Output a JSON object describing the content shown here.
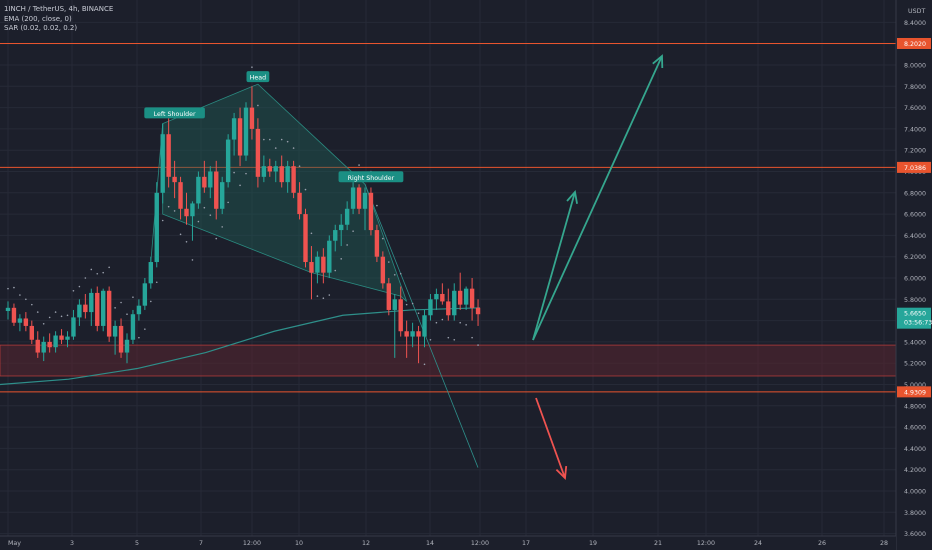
{
  "header": {
    "symbol_line": "1INCH / TetherUS, 4h, BINANCE",
    "indicator_ema": "EMA (200, close, 0)",
    "indicator_sar": "SAR (0.02, 0.02, 0.2)"
  },
  "price_axis": {
    "currency": "USDT",
    "ticks": [
      "8.4000",
      "8.2000",
      "8.0000",
      "7.8000",
      "7.6000",
      "7.4000",
      "7.2000",
      "7.0000",
      "6.8000",
      "6.6000",
      "6.4000",
      "6.2000",
      "6.0000",
      "5.8000",
      "5.6000",
      "5.4000",
      "5.2000",
      "5.0000",
      "4.8000",
      "4.6000",
      "4.4000",
      "4.2000",
      "4.0000",
      "3.8000",
      "3.6000"
    ]
  },
  "time_axis": {
    "ticks": [
      "May",
      "3",
      "5",
      "7",
      "12:00",
      "10",
      "12",
      "14",
      "12:00",
      "17",
      "19",
      "21",
      "12:00",
      "24",
      "26",
      "28"
    ]
  },
  "colors": {
    "background": "#1c1f2b",
    "up": "#26a69a",
    "down": "#ef5350",
    "level_line": "#e8542e",
    "zone_fill": "#5a2430",
    "zone_border": "#b23a3a",
    "ema": "#2e8f8a",
    "sar_dots": "#9aa0ad",
    "pattern_fill": "#1f5b55",
    "arrow_up": "#35a68e",
    "arrow_down": "#ef5350"
  },
  "chart_data": {
    "type": "candlestick",
    "title": "1INCH / TetherUS, 4h, BINANCE",
    "y_scale": "linear",
    "ylim": [
      3.6,
      8.45
    ],
    "grid": true,
    "legend": "top-left",
    "candles": [
      {
        "o": 5.69,
        "h": 5.78,
        "l": 5.61,
        "c": 5.72
      },
      {
        "o": 5.72,
        "h": 5.76,
        "l": 5.55,
        "c": 5.58
      },
      {
        "o": 5.58,
        "h": 5.66,
        "l": 5.5,
        "c": 5.62
      },
      {
        "o": 5.62,
        "h": 5.68,
        "l": 5.5,
        "c": 5.55
      },
      {
        "o": 5.55,
        "h": 5.6,
        "l": 5.38,
        "c": 5.42
      },
      {
        "o": 5.42,
        "h": 5.5,
        "l": 5.25,
        "c": 5.3
      },
      {
        "o": 5.3,
        "h": 5.45,
        "l": 5.22,
        "c": 5.4
      },
      {
        "o": 5.4,
        "h": 5.48,
        "l": 5.3,
        "c": 5.35
      },
      {
        "o": 5.35,
        "h": 5.5,
        "l": 5.3,
        "c": 5.46
      },
      {
        "o": 5.46,
        "h": 5.52,
        "l": 5.38,
        "c": 5.42
      },
      {
        "o": 5.42,
        "h": 5.5,
        "l": 5.35,
        "c": 5.45
      },
      {
        "o": 5.45,
        "h": 5.7,
        "l": 5.42,
        "c": 5.63
      },
      {
        "o": 5.63,
        "h": 5.8,
        "l": 5.55,
        "c": 5.75
      },
      {
        "o": 5.75,
        "h": 5.85,
        "l": 5.62,
        "c": 5.68
      },
      {
        "o": 5.68,
        "h": 5.9,
        "l": 5.55,
        "c": 5.86
      },
      {
        "o": 5.86,
        "h": 5.92,
        "l": 5.5,
        "c": 5.55
      },
      {
        "o": 5.55,
        "h": 5.9,
        "l": 5.5,
        "c": 5.88
      },
      {
        "o": 5.88,
        "h": 5.92,
        "l": 5.4,
        "c": 5.45
      },
      {
        "o": 5.45,
        "h": 5.6,
        "l": 5.28,
        "c": 5.55
      },
      {
        "o": 5.55,
        "h": 5.62,
        "l": 5.25,
        "c": 5.3
      },
      {
        "o": 5.3,
        "h": 5.48,
        "l": 5.2,
        "c": 5.42
      },
      {
        "o": 5.42,
        "h": 5.7,
        "l": 5.38,
        "c": 5.66
      },
      {
        "o": 5.66,
        "h": 5.8,
        "l": 5.6,
        "c": 5.74
      },
      {
        "o": 5.74,
        "h": 6.0,
        "l": 5.7,
        "c": 5.95
      },
      {
        "o": 5.95,
        "h": 6.2,
        "l": 5.9,
        "c": 6.15
      },
      {
        "o": 6.15,
        "h": 6.9,
        "l": 6.1,
        "c": 6.8
      },
      {
        "o": 6.8,
        "h": 7.45,
        "l": 6.7,
        "c": 7.35
      },
      {
        "o": 7.35,
        "h": 7.5,
        "l": 6.85,
        "c": 6.95
      },
      {
        "o": 6.95,
        "h": 7.1,
        "l": 6.75,
        "c": 6.9
      },
      {
        "o": 6.9,
        "h": 6.95,
        "l": 6.55,
        "c": 6.65
      },
      {
        "o": 6.65,
        "h": 6.8,
        "l": 6.5,
        "c": 6.58
      },
      {
        "o": 6.58,
        "h": 6.72,
        "l": 6.35,
        "c": 6.7
      },
      {
        "o": 6.7,
        "h": 7.0,
        "l": 6.65,
        "c": 6.95
      },
      {
        "o": 6.95,
        "h": 7.1,
        "l": 6.8,
        "c": 6.85
      },
      {
        "o": 6.85,
        "h": 7.05,
        "l": 6.75,
        "c": 7.0
      },
      {
        "o": 7.0,
        "h": 7.1,
        "l": 6.55,
        "c": 6.65
      },
      {
        "o": 6.65,
        "h": 6.95,
        "l": 6.6,
        "c": 6.9
      },
      {
        "o": 6.9,
        "h": 7.35,
        "l": 6.85,
        "c": 7.3
      },
      {
        "o": 7.3,
        "h": 7.55,
        "l": 7.15,
        "c": 7.5
      },
      {
        "o": 7.5,
        "h": 7.6,
        "l": 7.05,
        "c": 7.15
      },
      {
        "o": 7.15,
        "h": 7.65,
        "l": 7.1,
        "c": 7.6
      },
      {
        "o": 7.6,
        "h": 7.8,
        "l": 7.3,
        "c": 7.4
      },
      {
        "o": 7.4,
        "h": 7.5,
        "l": 6.85,
        "c": 6.95
      },
      {
        "o": 6.95,
        "h": 7.15,
        "l": 6.9,
        "c": 7.05
      },
      {
        "o": 7.05,
        "h": 7.12,
        "l": 6.95,
        "c": 7.0
      },
      {
        "o": 7.0,
        "h": 7.1,
        "l": 6.9,
        "c": 7.05
      },
      {
        "o": 7.05,
        "h": 7.15,
        "l": 6.85,
        "c": 6.9
      },
      {
        "o": 6.9,
        "h": 7.1,
        "l": 6.8,
        "c": 7.05
      },
      {
        "o": 7.05,
        "h": 7.1,
        "l": 6.75,
        "c": 6.8
      },
      {
        "o": 6.8,
        "h": 6.9,
        "l": 6.55,
        "c": 6.6
      },
      {
        "o": 6.6,
        "h": 6.65,
        "l": 6.1,
        "c": 6.15
      },
      {
        "o": 6.15,
        "h": 6.3,
        "l": 5.8,
        "c": 6.05
      },
      {
        "o": 6.05,
        "h": 6.25,
        "l": 5.95,
        "c": 6.2
      },
      {
        "o": 6.2,
        "h": 6.28,
        "l": 5.95,
        "c": 6.05
      },
      {
        "o": 6.05,
        "h": 6.4,
        "l": 6.0,
        "c": 6.35
      },
      {
        "o": 6.35,
        "h": 6.5,
        "l": 6.25,
        "c": 6.45
      },
      {
        "o": 6.45,
        "h": 6.6,
        "l": 6.3,
        "c": 6.5
      },
      {
        "o": 6.5,
        "h": 6.72,
        "l": 6.45,
        "c": 6.65
      },
      {
        "o": 6.65,
        "h": 6.9,
        "l": 6.6,
        "c": 6.85
      },
      {
        "o": 6.85,
        "h": 6.88,
        "l": 6.6,
        "c": 6.65
      },
      {
        "o": 6.65,
        "h": 6.85,
        "l": 6.45,
        "c": 6.8
      },
      {
        "o": 6.8,
        "h": 6.85,
        "l": 6.4,
        "c": 6.45
      },
      {
        "o": 6.45,
        "h": 6.5,
        "l": 6.15,
        "c": 6.2
      },
      {
        "o": 6.2,
        "h": 6.25,
        "l": 5.9,
        "c": 5.95
      },
      {
        "o": 5.95,
        "h": 6.0,
        "l": 5.65,
        "c": 5.7
      },
      {
        "o": 5.7,
        "h": 5.85,
        "l": 5.25,
        "c": 5.8
      },
      {
        "o": 5.8,
        "h": 5.92,
        "l": 5.45,
        "c": 5.5
      },
      {
        "o": 5.5,
        "h": 5.6,
        "l": 5.25,
        "c": 5.45
      },
      {
        "o": 5.45,
        "h": 5.58,
        "l": 5.35,
        "c": 5.5
      },
      {
        "o": 5.5,
        "h": 5.55,
        "l": 5.2,
        "c": 5.45
      },
      {
        "o": 5.45,
        "h": 5.7,
        "l": 5.35,
        "c": 5.65
      },
      {
        "o": 5.65,
        "h": 5.85,
        "l": 5.6,
        "c": 5.8
      },
      {
        "o": 5.8,
        "h": 5.9,
        "l": 5.7,
        "c": 5.85
      },
      {
        "o": 5.85,
        "h": 5.95,
        "l": 5.75,
        "c": 5.78
      },
      {
        "o": 5.78,
        "h": 5.9,
        "l": 5.6,
        "c": 5.65
      },
      {
        "o": 5.65,
        "h": 5.95,
        "l": 5.6,
        "c": 5.88
      },
      {
        "o": 5.88,
        "h": 6.05,
        "l": 5.7,
        "c": 5.75
      },
      {
        "o": 5.75,
        "h": 5.92,
        "l": 5.7,
        "c": 5.9
      },
      {
        "o": 5.9,
        "h": 6.0,
        "l": 5.6,
        "c": 5.72
      },
      {
        "o": 5.72,
        "h": 5.8,
        "l": 5.55,
        "c": 5.66
      }
    ],
    "ema200": [
      5.0,
      5.05,
      5.15,
      5.3,
      5.5,
      5.65,
      5.7,
      5.72
    ],
    "levels": [
      {
        "label": "8.2020",
        "price": 8.202
      },
      {
        "label": "7.0386",
        "price": 7.0386
      },
      {
        "label": "4.9309",
        "price": 4.9309
      }
    ],
    "support_zone": [
      5.08,
      5.37
    ],
    "last_price": {
      "label": "5.6650",
      "countdown": "03:56:73",
      "price": 5.665
    },
    "pattern_labels": [
      {
        "text": "Left Shoulder",
        "price": 7.48
      },
      {
        "text": "Head",
        "price": 7.82
      },
      {
        "text": "Right Shoulder",
        "price": 6.88
      }
    ]
  }
}
